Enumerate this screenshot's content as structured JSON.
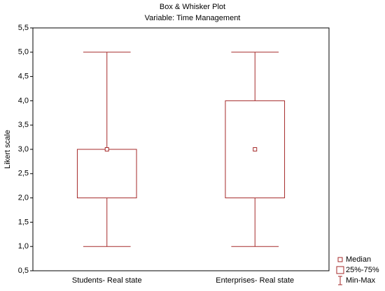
{
  "chart_data": {
    "type": "box",
    "title": "Box & Whisker Plot",
    "subtitle": "Variable: Time Management",
    "y_label": "Likert scale",
    "categories": [
      "Students- Real state",
      "Enterprises- Real state"
    ],
    "min": [
      1,
      1
    ],
    "q1": [
      2,
      2
    ],
    "median": [
      3,
      3
    ],
    "q3": [
      3,
      4
    ],
    "max": [
      5,
      5
    ],
    "color": "#a52a2a",
    "legend": [
      "Median",
      "25%-75%",
      "Min-Max"
    ],
    "ylim": [
      0.5,
      5.5
    ],
    "yticks": [
      {
        "value": 0.5,
        "label": "0,5"
      },
      {
        "value": 1,
        "label": "1,0"
      },
      {
        "value": 1.5,
        "label": "1,5"
      },
      {
        "value": 2,
        "label": "2,0"
      },
      {
        "value": 2.5,
        "label": "2,5"
      },
      {
        "value": 3,
        "label": "3,0"
      },
      {
        "value": 3.5,
        "label": "3,5"
      },
      {
        "value": 4,
        "label": "4,0"
      },
      {
        "value": 4.5,
        "label": "4,5"
      },
      {
        "value": 5,
        "label": "5,0"
      },
      {
        "value": 5.5,
        "label": "5,5"
      }
    ],
    "grid": false
  }
}
